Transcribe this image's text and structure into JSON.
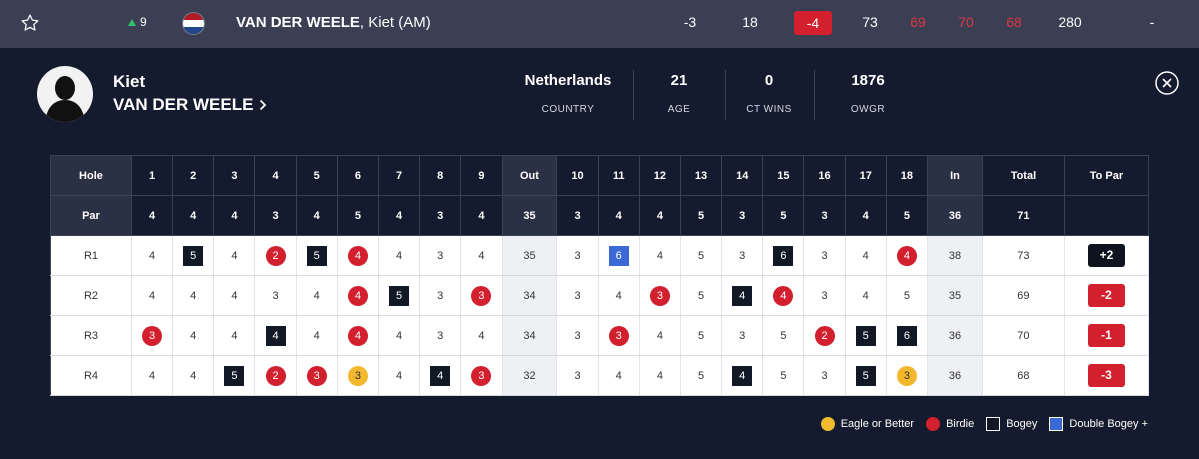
{
  "topbar": {
    "movement": "9",
    "last_name": "VAN DER WEELE",
    "first_name_suffix": ", Kiet (AM)",
    "cells": [
      "-3",
      "18",
      "-4",
      "73",
      "69",
      "70",
      "68",
      "280",
      "-"
    ],
    "colors": {
      "bar": "#3a3f54",
      "red": "#e2363f",
      "up": "#35c06a"
    }
  },
  "player": {
    "first_name": "Kiet",
    "last_name": "VAN DER WEELE",
    "stats": [
      {
        "value": "Netherlands",
        "label": "COUNTRY"
      },
      {
        "value": "21",
        "label": "AGE"
      },
      {
        "value": "0",
        "label": "CT WINS"
      },
      {
        "value": "1876",
        "label": "OWGR"
      }
    ]
  },
  "scorecard": {
    "hole_label": "Hole",
    "par_label": "Par",
    "out_label": "Out",
    "in_label": "In",
    "total_label": "Total",
    "to_par_label": "To Par",
    "holes": [
      "1",
      "2",
      "3",
      "4",
      "5",
      "6",
      "7",
      "8",
      "9",
      "10",
      "11",
      "12",
      "13",
      "14",
      "15",
      "16",
      "17",
      "18"
    ],
    "par": [
      "4",
      "4",
      "4",
      "3",
      "4",
      "5",
      "4",
      "3",
      "4",
      "3",
      "4",
      "4",
      "5",
      "3",
      "5",
      "3",
      "4",
      "5"
    ],
    "par_out": "35",
    "par_in": "36",
    "par_total": "71",
    "rounds": [
      {
        "label": "R1",
        "scores": [
          "4",
          "5",
          "4",
          "2",
          "5",
          "4",
          "4",
          "3",
          "4",
          "3",
          "6",
          "4",
          "5",
          "3",
          "6",
          "3",
          "4",
          "4"
        ],
        "out": "35",
        "in": "38",
        "total": "73",
        "to_par": "+2"
      },
      {
        "label": "R2",
        "scores": [
          "4",
          "4",
          "4",
          "3",
          "4",
          "4",
          "5",
          "3",
          "3",
          "3",
          "4",
          "3",
          "5",
          "4",
          "4",
          "3",
          "4",
          "5"
        ],
        "out": "34",
        "in": "35",
        "total": "69",
        "to_par": "-2"
      },
      {
        "label": "R3",
        "scores": [
          "3",
          "4",
          "4",
          "4",
          "4",
          "4",
          "4",
          "3",
          "4",
          "3",
          "3",
          "4",
          "5",
          "3",
          "5",
          "2",
          "5",
          "6"
        ],
        "out": "34",
        "in": "36",
        "total": "70",
        "to_par": "-1"
      },
      {
        "label": "R4",
        "scores": [
          "4",
          "4",
          "5",
          "2",
          "3",
          "3",
          "4",
          "4",
          "3",
          "3",
          "4",
          "4",
          "5",
          "4",
          "5",
          "3",
          "5",
          "3"
        ],
        "out": "32",
        "in": "36",
        "total": "68",
        "to_par": "-3"
      }
    ]
  },
  "legend": {
    "eagle": "Eagle or Better",
    "birdie": "Birdie",
    "bogey": "Bogey",
    "double": "Double Bogey +"
  }
}
